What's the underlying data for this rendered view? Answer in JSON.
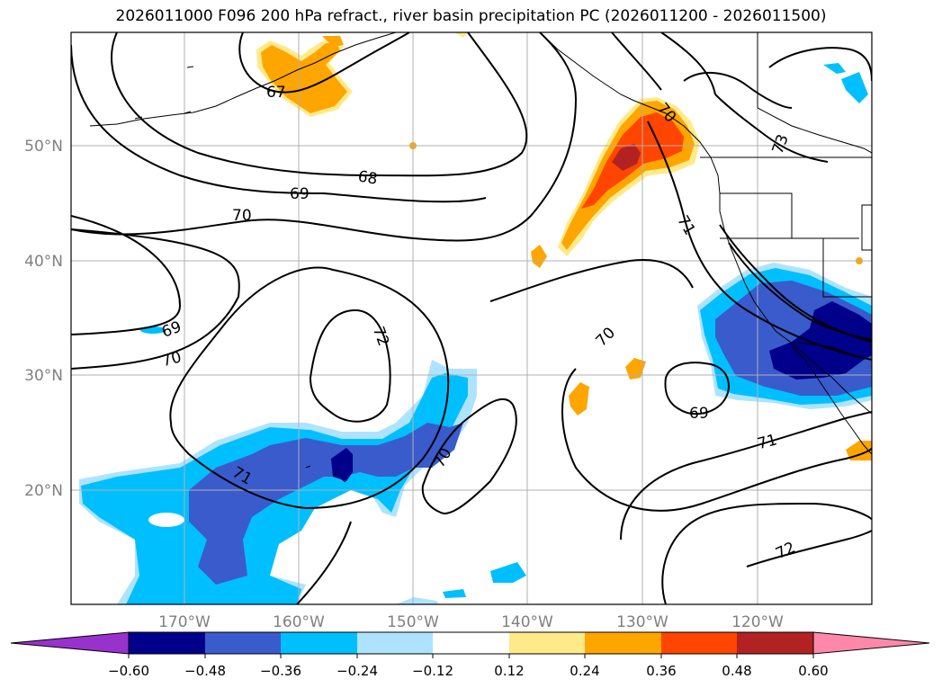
{
  "title": "2026011000 F096 200 hPa refract., river basin precipitation PC (2026011200 - 2026011500)",
  "lat_labels": [
    "50°N",
    "40°N",
    "30°N",
    "20°N"
  ],
  "lon_labels": [
    "170°W",
    "160°W",
    "150°W",
    "140°W",
    "130°W",
    "120°W"
  ],
  "contour_labels": [
    "67",
    "68",
    "69",
    "70",
    "72",
    "70",
    "69",
    "70",
    "71",
    "70",
    "73",
    "71",
    "70",
    "69",
    "71",
    "72"
  ],
  "colorbar": {
    "tick_labels": [
      "−0.60",
      "−0.48",
      "−0.36",
      "−0.24",
      "−0.12",
      "0.12",
      "0.24",
      "0.36",
      "0.48",
      "0.60"
    ],
    "colors": [
      "#9932cc",
      "#00008b",
      "#3a5bcc",
      "#00bfff",
      "#aee3ff",
      "#ffffff",
      "#ffea8a",
      "#ffa500",
      "#ff4500",
      "#b22222",
      "#ff88aa"
    ]
  },
  "colors": {
    "neg_dark": "#00008b",
    "neg_mid": "#3a5bcc",
    "neg_light": "#00bfff",
    "neg_pale": "#aee3ff",
    "pos_pale": "#ffea8a",
    "pos_light": "#ffa500",
    "pos_mid": "#ff4500",
    "pos_dark": "#b22222",
    "grid": "#b0b0b0",
    "axis_label": "#808080"
  }
}
